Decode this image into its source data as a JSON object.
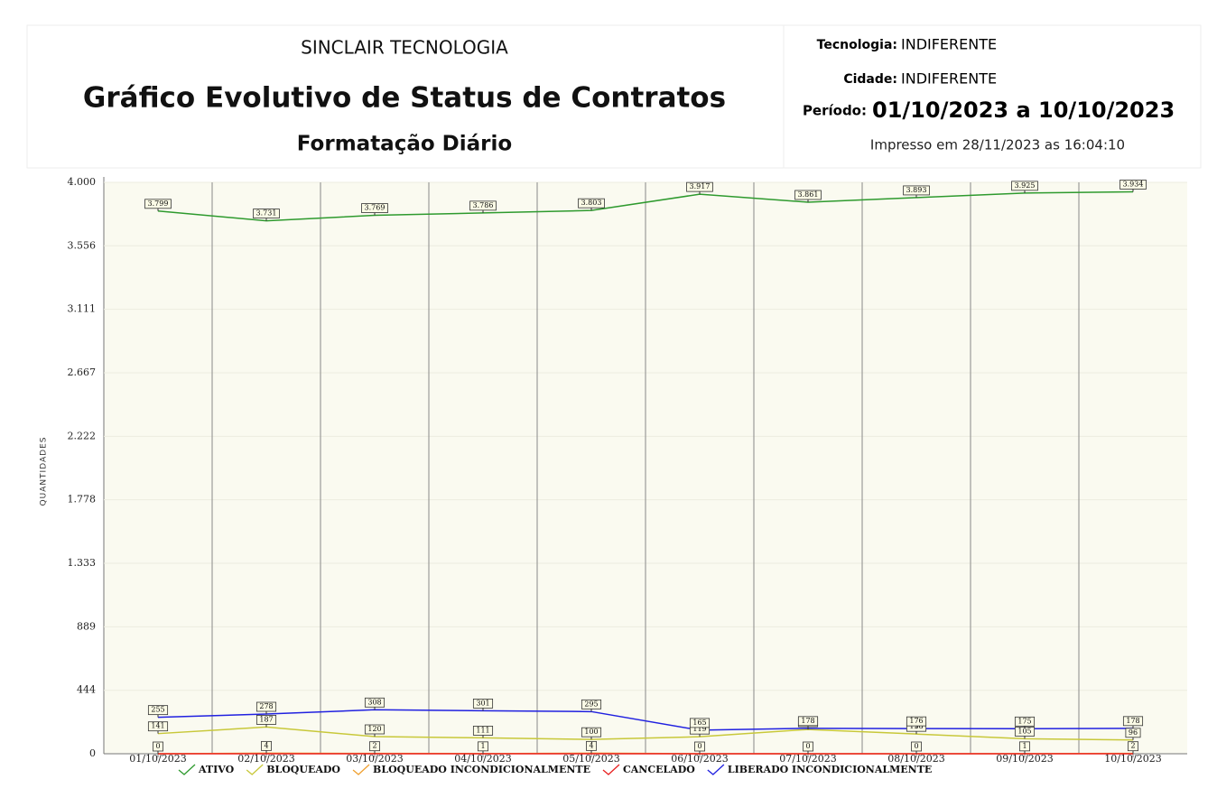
{
  "header": {
    "company": "SINCLAIR TECNOLOGIA",
    "title": "Gráfico Evolutivo de Status de Contratos",
    "subtitle": "Formatação Diário",
    "filters": [
      {
        "label": "Tecnologia:",
        "value": "INDIFERENTE"
      },
      {
        "label": "Cidade:",
        "value": "INDIFERENTE"
      },
      {
        "label": "Período:",
        "value": "01/10/2023 a 10/10/2023"
      }
    ],
    "printed": "Impresso em 28/11/2023 as 16:04:10"
  },
  "chart_data": {
    "type": "line",
    "ylabel": "QUANTIDADES",
    "categories": [
      "01/10/2023",
      "02/10/2023",
      "03/10/2023",
      "04/10/2023",
      "05/10/2023",
      "06/10/2023",
      "07/10/2023",
      "08/10/2023",
      "09/10/2023",
      "10/10/2023"
    ],
    "ylim": [
      0,
      4000
    ],
    "yticks": [
      0,
      444,
      889,
      {
        "value": 1333,
        "label": "1.333"
      },
      {
        "value": 1778,
        "label": "1.778"
      },
      {
        "value": 2222,
        "label": "2.222"
      },
      {
        "value": 2667,
        "label": "2.667"
      },
      {
        "value": 3111,
        "label": "3.111"
      },
      {
        "value": 3556,
        "label": "3.556"
      },
      {
        "value": 4000,
        "label": "4.000"
      }
    ],
    "grid": true,
    "legend": "bottom",
    "series": [
      {
        "name": "ATIVO",
        "color": "#2e9a2e",
        "values": [
          3799,
          3731,
          3769,
          3786,
          3803,
          3917,
          3861,
          3893,
          3925,
          3934
        ],
        "value_labels": [
          "3.799",
          "3.731",
          "3.769",
          "3.786",
          "3.803",
          "3.917",
          "3.861",
          "3.893",
          "3.925",
          "3.934"
        ]
      },
      {
        "name": "BLOQUEADO",
        "color": "#c8c83a",
        "values": [
          141,
          187,
          120,
          111,
          100,
          119,
          170,
          138,
          105,
          96
        ]
      },
      {
        "name": "BLOQUEADO INCONDICIONALMENTE",
        "color": "#f0a030",
        "values": [
          0,
          4,
          2,
          1,
          4,
          0,
          0,
          0,
          1,
          2
        ]
      },
      {
        "name": "CANCELADO",
        "color": "#e82020",
        "values": [
          0,
          0,
          0,
          0,
          0,
          0,
          0,
          0,
          0,
          0
        ],
        "show_labels": false
      },
      {
        "name": "LIBERADO INCONDICIONALMENTE",
        "color": "#2020e0",
        "values": [
          255,
          278,
          308,
          301,
          295,
          165,
          178,
          176,
          175,
          178
        ]
      }
    ]
  }
}
